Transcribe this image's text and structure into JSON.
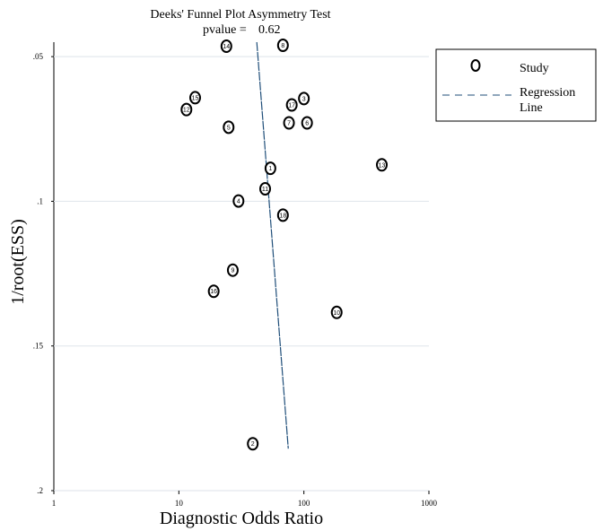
{
  "chart_data": {
    "type": "scatter",
    "title": "Deeks' Funnel Plot Asymmetry Test",
    "subtitle_label": "pvalue =",
    "subtitle_value": "0.62",
    "xlabel": "Diagnostic Odds Ratio",
    "ylabel": "1/root(ESS)",
    "x_scale": "log",
    "xlim": [
      1,
      1000
    ],
    "ylim": [
      0.2,
      0.045
    ],
    "x_ticks": [
      1,
      10,
      100,
      1000
    ],
    "x_tick_labels": [
      "1",
      "10",
      "100",
      "1000"
    ],
    "y_ticks": [
      0.05,
      0.1,
      0.15,
      0.2
    ],
    "y_tick_labels": [
      ".05",
      ".1",
      ".15",
      ".2"
    ],
    "grid": "horizontal",
    "legend": {
      "placement": "top-right",
      "study_label": "Study",
      "regression_label_line1": "Regression",
      "regression_label_line2": "Line"
    },
    "points": [
      {
        "label": "1",
        "x": 54,
        "y": 0.0886
      },
      {
        "label": "2",
        "x": 39,
        "y": 0.1838
      },
      {
        "label": "3",
        "x": 100,
        "y": 0.0645
      },
      {
        "label": "4",
        "x": 30,
        "y": 0.0999
      },
      {
        "label": "5",
        "x": 25,
        "y": 0.0744
      },
      {
        "label": "6",
        "x": 106,
        "y": 0.0729
      },
      {
        "label": "7",
        "x": 76,
        "y": 0.0729
      },
      {
        "label": "8",
        "x": 68,
        "y": 0.0461
      },
      {
        "label": "9",
        "x": 27,
        "y": 0.1238
      },
      {
        "label": "10",
        "x": 183,
        "y": 0.1384
      },
      {
        "label": "11",
        "x": 49,
        "y": 0.0957
      },
      {
        "label": "12",
        "x": 11.5,
        "y": 0.0683
      },
      {
        "label": "13",
        "x": 420,
        "y": 0.0874
      },
      {
        "label": "14",
        "x": 24,
        "y": 0.0464
      },
      {
        "label": "15",
        "x": 13.5,
        "y": 0.0642
      },
      {
        "label": "16",
        "x": 19,
        "y": 0.1311
      },
      {
        "label": "17",
        "x": 80,
        "y": 0.0667
      },
      {
        "label": "18",
        "x": 68,
        "y": 0.1048
      }
    ],
    "regression_line": {
      "x1": 42,
      "y1": 0.045,
      "x2": 75,
      "y2": 0.1855,
      "color": "#1f4e79"
    }
  }
}
